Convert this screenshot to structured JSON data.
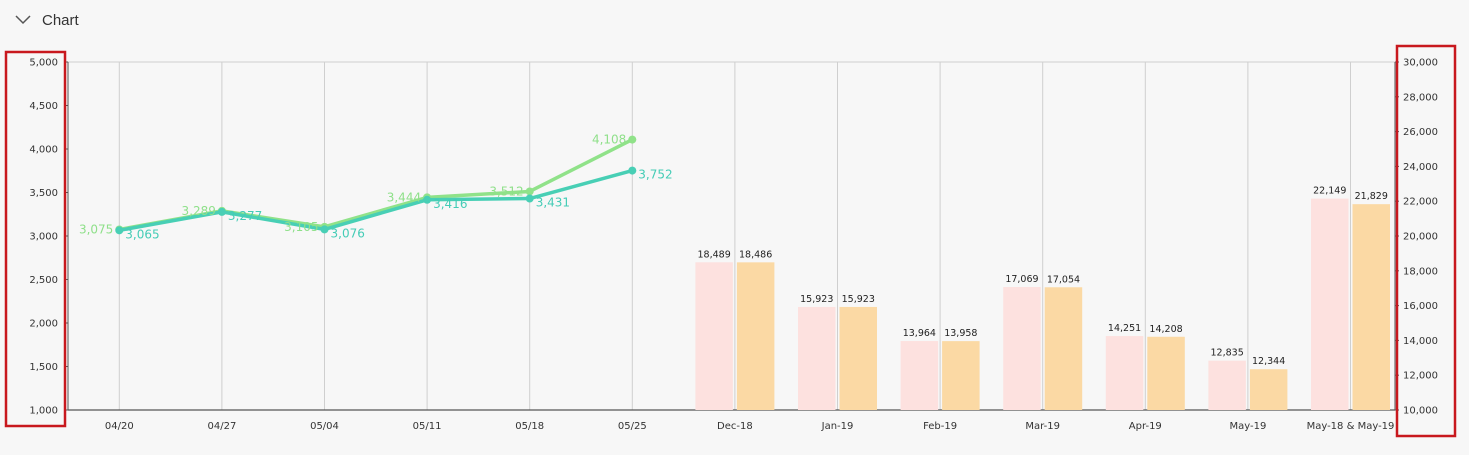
{
  "panel": {
    "title": "Chart",
    "toggle_icon": "chevron-down-icon"
  },
  "colors": {
    "line_green": "#90e289",
    "line_teal": "#48cfb5",
    "bar_pink": "#fde1df",
    "bar_orange": "#fbd9a4",
    "grid": "#cfcfcf",
    "highlight": "#c8181e"
  },
  "chart_data": [
    {
      "type": "line",
      "x": [
        "04/20",
        "04/27",
        "05/04",
        "05/11",
        "05/18",
        "05/25"
      ],
      "series": [
        {
          "values": [
            3075,
            3289,
            3105,
            3444,
            3512,
            4108
          ]
        },
        {
          "values": [
            3065,
            3277,
            3076,
            3416,
            3431,
            3752
          ]
        }
      ],
      "point_labels": [
        [
          "3,075",
          "3,289",
          "3,105",
          "3,444",
          "3,512",
          "4,108"
        ],
        [
          "3,065",
          "3,277",
          "3,076",
          "3,416",
          "3,431",
          "3,752"
        ]
      ],
      "y_ticks": [
        "1,000",
        "1,500",
        "2,000",
        "2,500",
        "3,000",
        "3,500",
        "4,000",
        "4,500",
        "5,000"
      ],
      "ylim": [
        1000,
        5000
      ],
      "axis_side": "left",
      "grid": true
    },
    {
      "type": "bar",
      "categories": [
        "Dec-18",
        "Jan-19",
        "Feb-19",
        "Mar-19",
        "Apr-19",
        "May-19",
        "May-18 & May-19"
      ],
      "series": [
        {
          "values": [
            18489,
            15923,
            13964,
            17069,
            14251,
            12835,
            22149
          ]
        },
        {
          "values": [
            18486,
            15923,
            13958,
            17054,
            14208,
            12344,
            21829
          ]
        }
      ],
      "value_labels": [
        [
          "18,489",
          "15,923",
          "13,964",
          "17,069",
          "14,251",
          "12,835",
          "22,149"
        ],
        [
          "18,486",
          "15,923",
          "13,958",
          "17,054",
          "14,208",
          "12,344",
          "21,829"
        ]
      ],
      "y_ticks": [
        "10,000",
        "12,000",
        "14,000",
        "16,000",
        "18,000",
        "20,000",
        "22,000",
        "24,000",
        "26,000",
        "28,000",
        "30,000"
      ],
      "ylim": [
        10000,
        30000
      ],
      "axis_side": "right",
      "grid": true
    }
  ]
}
